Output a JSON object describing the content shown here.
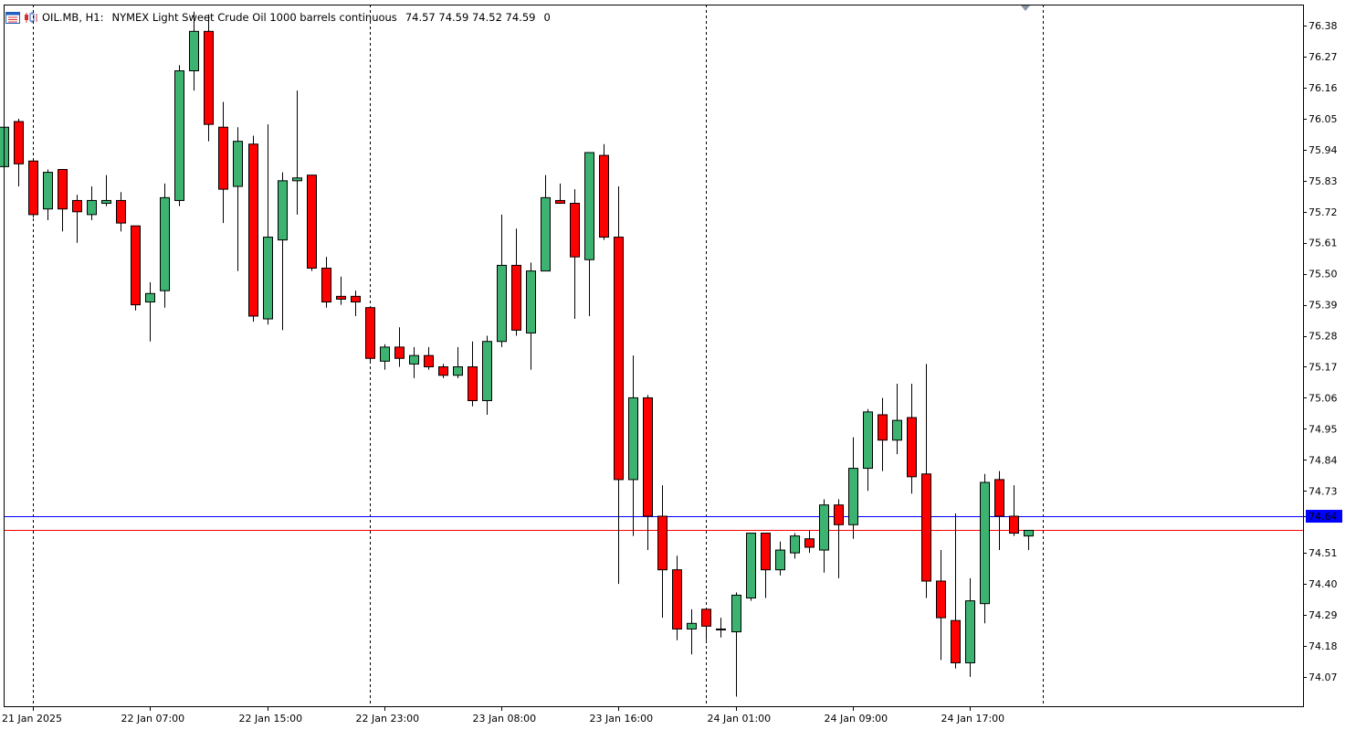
{
  "header": {
    "symbol": "OIL.MB, H1:",
    "description": "NYMEX Light Sweet Crude Oil 1000 barrels continuous",
    "ohlc": "74.57 74.59 74.52 74.59",
    "extra": "0",
    "icons": [
      "window-list-icon",
      "chart-type-icon"
    ]
  },
  "colors": {
    "bull": "#3cb371",
    "bear": "#ff0000",
    "wick": "#000000",
    "frame": "#000000",
    "separator": "#000000",
    "blue_line": "#0000ff",
    "red_line": "#ff0000"
  },
  "chart_data": {
    "type": "candlestick",
    "y_ticks": [
      "76.38",
      "76.27",
      "76.16",
      "76.05",
      "75.94",
      "75.83",
      "75.72",
      "75.61",
      "75.50",
      "75.39",
      "75.28",
      "75.17",
      "75.06",
      "74.95",
      "74.84",
      "74.73",
      "74.64",
      "74.51",
      "74.40",
      "74.29",
      "74.18",
      "74.07"
    ],
    "x_labels": [
      "21 Jan 2025",
      "22 Jan 07:00",
      "22 Jan 15:00",
      "22 Jan 23:00",
      "23 Jan 08:00",
      "23 Jan 16:00",
      "24 Jan 01:00",
      "24 Jan 09:00",
      "24 Jan 17:00"
    ],
    "ylim": [
      73.966,
      76.455
    ],
    "day_separators": [
      2,
      25,
      48,
      71
    ],
    "price_lines": [
      {
        "label": "74.64",
        "value": 74.64,
        "color": "#0000ff"
      },
      {
        "label": "74.59",
        "value": 74.59,
        "color": "#ff0000"
      }
    ],
    "candles": [
      {
        "o": 75.88,
        "h": 76.02,
        "l": 75.82,
        "c": 76.02
      },
      {
        "o": 76.04,
        "h": 76.05,
        "l": 75.81,
        "c": 75.89
      },
      {
        "o": 75.9,
        "h": 75.9,
        "l": 75.7,
        "c": 75.71
      },
      {
        "o": 75.73,
        "h": 75.87,
        "l": 75.69,
        "c": 75.86
      },
      {
        "o": 75.87,
        "h": 75.87,
        "l": 75.65,
        "c": 75.73
      },
      {
        "o": 75.76,
        "h": 75.78,
        "l": 75.61,
        "c": 75.72
      },
      {
        "o": 75.71,
        "h": 75.81,
        "l": 75.69,
        "c": 75.76
      },
      {
        "o": 75.75,
        "h": 75.85,
        "l": 75.74,
        "c": 75.76
      },
      {
        "o": 75.76,
        "h": 75.79,
        "l": 75.65,
        "c": 75.68
      },
      {
        "o": 75.67,
        "h": 75.67,
        "l": 75.37,
        "c": 75.39
      },
      {
        "o": 75.4,
        "h": 75.47,
        "l": 75.26,
        "c": 75.43
      },
      {
        "o": 75.44,
        "h": 75.82,
        "l": 75.38,
        "c": 75.77
      },
      {
        "o": 75.76,
        "h": 76.24,
        "l": 75.74,
        "c": 76.22
      },
      {
        "o": 76.22,
        "h": 76.43,
        "l": 76.15,
        "c": 76.36
      },
      {
        "o": 76.36,
        "h": 76.42,
        "l": 75.97,
        "c": 76.03
      },
      {
        "o": 76.02,
        "h": 76.11,
        "l": 75.68,
        "c": 75.8
      },
      {
        "o": 75.81,
        "h": 76.02,
        "l": 75.51,
        "c": 75.97
      },
      {
        "o": 75.96,
        "h": 75.99,
        "l": 75.33,
        "c": 75.35
      },
      {
        "o": 75.34,
        "h": 76.03,
        "l": 75.32,
        "c": 75.63
      },
      {
        "o": 75.62,
        "h": 75.86,
        "l": 75.3,
        "c": 75.83
      },
      {
        "o": 75.83,
        "h": 76.15,
        "l": 75.71,
        "c": 75.84
      },
      {
        "o": 75.85,
        "h": 75.85,
        "l": 75.51,
        "c": 75.52
      },
      {
        "o": 75.52,
        "h": 75.56,
        "l": 75.38,
        "c": 75.4
      },
      {
        "o": 75.42,
        "h": 75.49,
        "l": 75.39,
        "c": 75.41
      },
      {
        "o": 75.42,
        "h": 75.44,
        "l": 75.35,
        "c": 75.4
      },
      {
        "o": 75.38,
        "h": 75.38,
        "l": 75.19,
        "c": 75.2
      },
      {
        "o": 75.19,
        "h": 75.25,
        "l": 75.16,
        "c": 75.24
      },
      {
        "o": 75.24,
        "h": 75.31,
        "l": 75.17,
        "c": 75.2
      },
      {
        "o": 75.18,
        "h": 75.24,
        "l": 75.13,
        "c": 75.21
      },
      {
        "o": 75.21,
        "h": 75.24,
        "l": 75.16,
        "c": 75.17
      },
      {
        "o": 75.17,
        "h": 75.18,
        "l": 75.13,
        "c": 75.14
      },
      {
        "o": 75.14,
        "h": 75.24,
        "l": 75.13,
        "c": 75.17
      },
      {
        "o": 75.17,
        "h": 75.26,
        "l": 75.03,
        "c": 75.05
      },
      {
        "o": 75.05,
        "h": 75.28,
        "l": 75.0,
        "c": 75.26
      },
      {
        "o": 75.26,
        "h": 75.71,
        "l": 75.24,
        "c": 75.53
      },
      {
        "o": 75.53,
        "h": 75.66,
        "l": 75.28,
        "c": 75.3
      },
      {
        "o": 75.29,
        "h": 75.54,
        "l": 75.16,
        "c": 75.51
      },
      {
        "o": 75.51,
        "h": 75.85,
        "l": 75.51,
        "c": 75.77
      },
      {
        "o": 75.76,
        "h": 75.82,
        "l": 75.75,
        "c": 75.75
      },
      {
        "o": 75.75,
        "h": 75.8,
        "l": 75.34,
        "c": 75.56
      },
      {
        "o": 75.55,
        "h": 75.93,
        "l": 75.35,
        "c": 75.93
      },
      {
        "o": 75.92,
        "h": 75.96,
        "l": 75.62,
        "c": 75.63
      },
      {
        "o": 75.63,
        "h": 75.81,
        "l": 74.4,
        "c": 74.77
      },
      {
        "o": 74.77,
        "h": 75.21,
        "l": 74.57,
        "c": 75.06
      },
      {
        "o": 75.06,
        "h": 75.07,
        "l": 74.52,
        "c": 74.64
      },
      {
        "o": 74.64,
        "h": 74.75,
        "l": 74.28,
        "c": 74.45
      },
      {
        "o": 74.45,
        "h": 74.5,
        "l": 74.2,
        "c": 74.24
      },
      {
        "o": 74.24,
        "h": 74.31,
        "l": 74.15,
        "c": 74.26
      },
      {
        "o": 74.31,
        "h": 74.31,
        "l": 74.2,
        "c": 74.25
      },
      {
        "o": 74.24,
        "h": 74.28,
        "l": 74.21,
        "c": 74.24
      },
      {
        "o": 74.23,
        "h": 74.37,
        "l": 74.0,
        "c": 74.36
      },
      {
        "o": 74.35,
        "h": 74.58,
        "l": 74.34,
        "c": 74.58
      },
      {
        "o": 74.58,
        "h": 74.58,
        "l": 74.35,
        "c": 74.45
      },
      {
        "o": 74.45,
        "h": 74.55,
        "l": 74.43,
        "c": 74.52
      },
      {
        "o": 74.51,
        "h": 74.58,
        "l": 74.49,
        "c": 74.57
      },
      {
        "o": 74.56,
        "h": 74.59,
        "l": 74.51,
        "c": 74.53
      },
      {
        "o": 74.52,
        "h": 74.7,
        "l": 74.44,
        "c": 74.68
      },
      {
        "o": 74.68,
        "h": 74.7,
        "l": 74.42,
        "c": 74.61
      },
      {
        "o": 74.61,
        "h": 74.92,
        "l": 74.56,
        "c": 74.81
      },
      {
        "o": 74.81,
        "h": 75.02,
        "l": 74.73,
        "c": 75.01
      },
      {
        "o": 75.0,
        "h": 75.06,
        "l": 74.8,
        "c": 74.91
      },
      {
        "o": 74.91,
        "h": 75.11,
        "l": 74.86,
        "c": 74.98
      },
      {
        "o": 74.99,
        "h": 75.11,
        "l": 74.72,
        "c": 74.78
      },
      {
        "o": 74.79,
        "h": 75.18,
        "l": 74.35,
        "c": 74.41
      },
      {
        "o": 74.41,
        "h": 74.52,
        "l": 74.13,
        "c": 74.28
      },
      {
        "o": 74.27,
        "h": 74.65,
        "l": 74.1,
        "c": 74.12
      },
      {
        "o": 74.12,
        "h": 74.42,
        "l": 74.07,
        "c": 74.34
      },
      {
        "o": 74.33,
        "h": 74.79,
        "l": 74.26,
        "c": 74.76
      },
      {
        "o": 74.77,
        "h": 74.8,
        "l": 74.52,
        "c": 74.64
      },
      {
        "o": 74.64,
        "h": 74.75,
        "l": 74.57,
        "c": 74.58
      },
      {
        "o": 74.57,
        "h": 74.59,
        "l": 74.52,
        "c": 74.59
      }
    ]
  }
}
